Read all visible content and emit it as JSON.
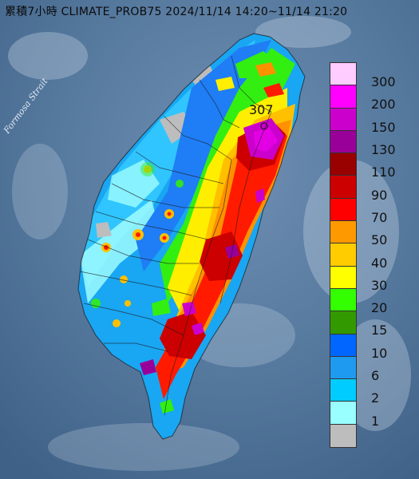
{
  "title": "累積7小時 CLIMATE_PROB75 2024/11/14 14:20~11/14 21:20",
  "strait_label": "Formosa Strait",
  "max_label": "307",
  "legend": {
    "levels": [
      {
        "label": "300",
        "color": "#ffccff"
      },
      {
        "label": "200",
        "color": "#ff00ff"
      },
      {
        "label": "150",
        "color": "#cc00cc"
      },
      {
        "label": "130",
        "color": "#990099"
      },
      {
        "label": "110",
        "color": "#990000"
      },
      {
        "label": "90",
        "color": "#cc0000"
      },
      {
        "label": "70",
        "color": "#ff0000"
      },
      {
        "label": "50",
        "color": "#ff9900"
      },
      {
        "label": "40",
        "color": "#ffcc00"
      },
      {
        "label": "30",
        "color": "#ffff00"
      },
      {
        "label": "20",
        "color": "#33ff00"
      },
      {
        "label": "15",
        "color": "#339900"
      },
      {
        "label": "10",
        "color": "#0066ff"
      },
      {
        "label": "6",
        "color": "#1e9af0"
      },
      {
        "label": "2",
        "color": "#00ccff"
      },
      {
        "label": "1",
        "color": "#99ffff"
      },
      {
        "label": "",
        "color": "#bdbdbd"
      }
    ]
  }
}
